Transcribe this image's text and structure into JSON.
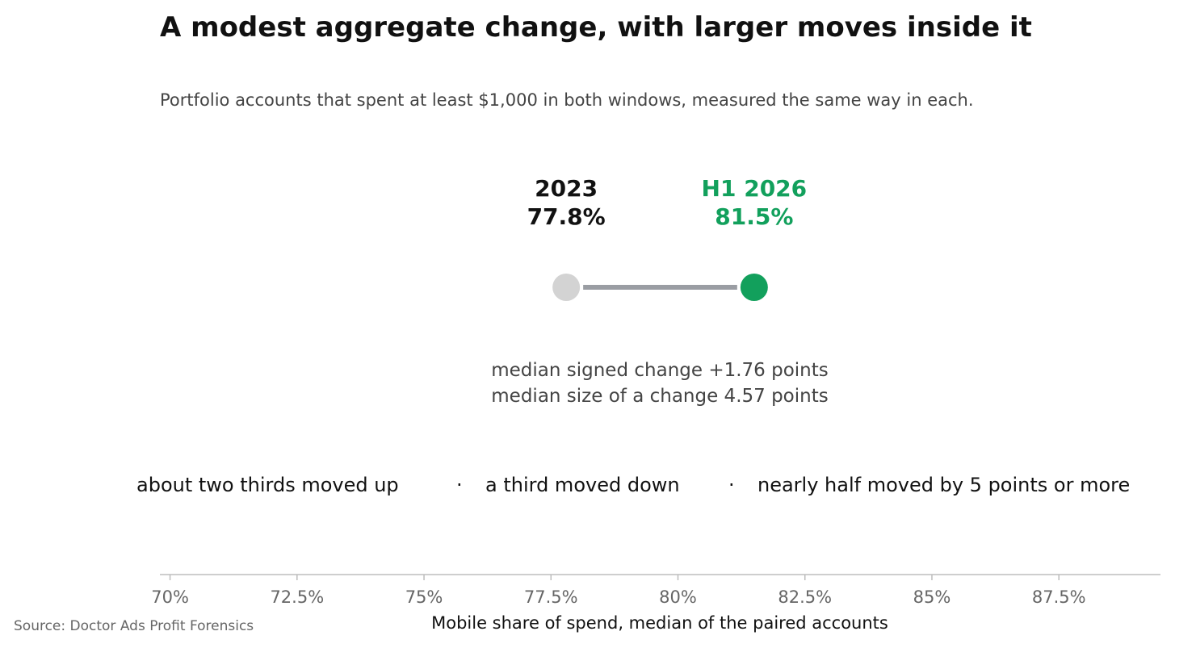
{
  "chart_data": {
    "type": "dumbbell",
    "title": "A modest aggregate change, with larger moves inside it",
    "subtitle": "Portfolio accounts that spent at least $1,000 in both windows, measured the same way in each.",
    "points": [
      {
        "label": "2023",
        "value": 77.8,
        "value_label": "77.8%",
        "color": "#d3d3d3",
        "label_color": "#111111"
      },
      {
        "label": "H1 2026",
        "value": 81.5,
        "value_label": "81.5%",
        "color": "#12a05c",
        "label_color": "#12a05c"
      }
    ],
    "connector_color": "#9a9da3",
    "stats": [
      "median signed change +1.76 points",
      "median size of a change 4.57 points"
    ],
    "findings": [
      "about two thirds moved up",
      "a third moved down",
      "nearly half moved by 5 points or more"
    ],
    "separator": "·",
    "xlabel": "Mobile share of spend, median of the paired accounts",
    "xticks": [
      70,
      72.5,
      75,
      77.5,
      80,
      82.5,
      85,
      87.5
    ],
    "xtick_labels": [
      "70%",
      "72.5%",
      "75%",
      "77.5%",
      "80%",
      "82.5%",
      "85%",
      "87.5%"
    ],
    "xlim": [
      69.8,
      89.5
    ],
    "grid": false,
    "source": "Source: Doctor Ads Profit Forensics"
  }
}
